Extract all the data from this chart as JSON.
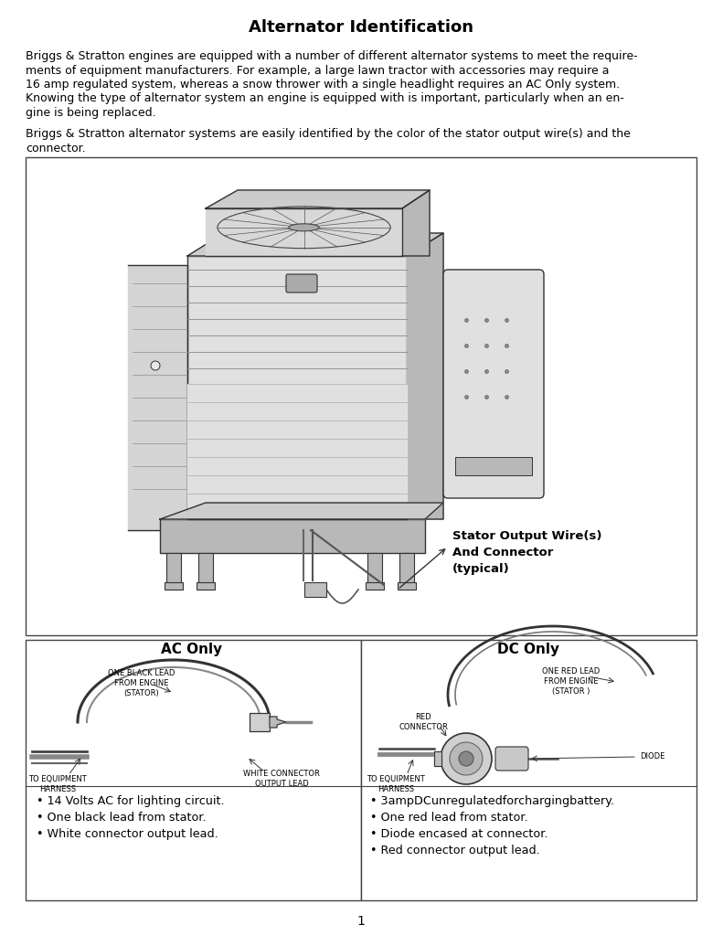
{
  "title": "Alternator Identification",
  "para1_lines": [
    "Briggs & Stratton engines are equipped with a number of different alternator systems to meet the require-",
    "ments of equipment manufacturers. For example, a large lawn tractor with accessories may require a",
    "16 amp regulated system, whereas a snow thrower with a single headlight requires an AC Only system.",
    "Knowing the type of alternator system an engine is equipped with is important, particularly when an en-",
    "gine is being replaced."
  ],
  "para2_lines": [
    "Briggs & Stratton alternator systems are easily identified by the color of the stator output wire(s) and the",
    "connector."
  ],
  "ac_title": "AC Only",
  "dc_title": "DC Only",
  "ac_bullets": [
    "14 Volts AC for lighting circuit.",
    "One black lead from stator.",
    "White connector output lead."
  ],
  "dc_bullets": [
    "3ampDCunregulatedforchargingbattery.",
    "One red lead from stator.",
    "Diode encased at connector.",
    "Red connector output lead."
  ],
  "ac_label_top": "ONE BLACK LEAD\nFROM ENGINE\n(STATOR)",
  "ac_label_left": "TO EQUIPMENT\nHARNESS",
  "ac_label_right": "WHITE CONNECTOR\nOUTPUT LEAD",
  "dc_label_top": "ONE RED LEAD\nFROM ENGINE\n(STATOR )",
  "dc_label_redconn": "RED\nCONNECTOR",
  "dc_label_left": "TO EQUIPMENT\nHARNESS",
  "dc_label_diode": "DIODE",
  "stator_label": "Stator Output Wire(s)\nAnd Connector\n(typical)",
  "page_num": "1",
  "bg_color": "#ffffff",
  "text_color": "#000000",
  "label_fontsize": 6.0,
  "body_fontsize": 9.0,
  "title_fontsize": 13.0
}
